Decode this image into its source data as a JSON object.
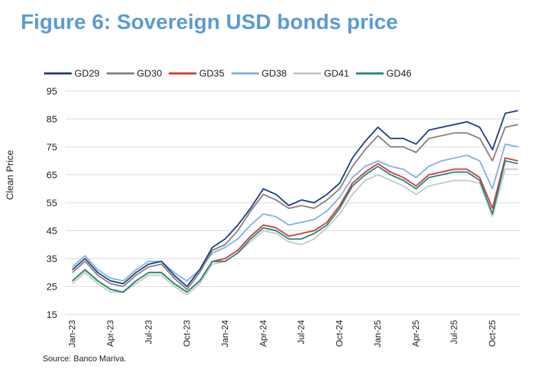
{
  "figure": {
    "title": "Figure 6: Sovereign USD bonds price",
    "source": "Source: Banco Mariva."
  },
  "chart_data": {
    "type": "line",
    "title": "Figure 6: Sovereign USD bonds price",
    "xlabel": "",
    "ylabel": "Clean Price",
    "ylim": [
      15,
      95
    ],
    "yticks": [
      95,
      85,
      75,
      65,
      55,
      45,
      35,
      25,
      15
    ],
    "xticks": [
      "Jan-23",
      "Apr-23",
      "Jul-23",
      "Oct-23",
      "Jan-24",
      "Apr-24",
      "Jul-24",
      "Oct-24",
      "Jan-25",
      "Apr-25",
      "Jul-25",
      "Oct-25"
    ],
    "grid": true,
    "legend_position": "top",
    "x": [
      "Jan-23",
      "Feb-23",
      "Mar-23",
      "Apr-23",
      "May-23",
      "Jun-23",
      "Jul-23",
      "Aug-23",
      "Sep-23",
      "Oct-23",
      "Nov-23",
      "Dec-23",
      "Jan-24",
      "Feb-24",
      "Mar-24",
      "Apr-24",
      "May-24",
      "Jun-24",
      "Jul-24",
      "Aug-24",
      "Sep-24",
      "Oct-24",
      "Nov-24",
      "Dec-24",
      "Jan-25",
      "Feb-25",
      "Mar-25",
      "Apr-25",
      "May-25",
      "Jun-25",
      "Jul-25",
      "Aug-25",
      "Sep-25",
      "Oct-25",
      "Nov-25",
      "Dec-25"
    ],
    "series": [
      {
        "name": "GD29",
        "color": "#1f3d8c",
        "values": [
          31,
          35,
          30,
          27,
          26,
          30,
          33,
          34,
          29,
          25,
          31,
          39,
          42,
          47,
          53,
          60,
          58,
          54,
          56,
          55,
          58,
          62,
          71,
          77,
          82,
          78,
          78,
          76,
          81,
          82,
          83,
          84,
          82,
          74,
          87,
          88
        ]
      },
      {
        "name": "GD30",
        "color": "#8b8178",
        "values": [
          30,
          34,
          29,
          26,
          25,
          29,
          32,
          33,
          28,
          24,
          30,
          38,
          40,
          45,
          52,
          58,
          56,
          53,
          54,
          53,
          56,
          60,
          68,
          74,
          79,
          75,
          75,
          73,
          78,
          79,
          80,
          80,
          78,
          70,
          82,
          83
        ]
      },
      {
        "name": "GD35",
        "color": "#d63a3a",
        "values": [
          27,
          31,
          27,
          24,
          23,
          27,
          30,
          30,
          26,
          23,
          27,
          34,
          35,
          38,
          43,
          47,
          46,
          43,
          44,
          45,
          48,
          54,
          62,
          66,
          69,
          66,
          64,
          61,
          65,
          66,
          67,
          67,
          64,
          53,
          71,
          70
        ]
      },
      {
        "name": "GD38",
        "color": "#7fb2e6",
        "values": [
          32,
          36,
          31,
          28,
          27,
          31,
          34,
          34,
          30,
          27,
          31,
          37,
          39,
          42,
          47,
          51,
          50,
          47,
          48,
          49,
          52,
          57,
          64,
          68,
          70,
          68,
          67,
          64,
          68,
          70,
          71,
          72,
          70,
          60,
          76,
          75
        ]
      },
      {
        "name": "GD41",
        "color": "#c8c8c8",
        "values": [
          26,
          30,
          26,
          23,
          23,
          26,
          29,
          29,
          25,
          22,
          26,
          33,
          34,
          37,
          41,
          45,
          44,
          41,
          40,
          42,
          46,
          51,
          58,
          63,
          65,
          63,
          61,
          58,
          61,
          62,
          63,
          63,
          62,
          50,
          67,
          67
        ]
      },
      {
        "name": "GD46",
        "color": "#1f8a80",
        "values": [
          27,
          31,
          27,
          24,
          23,
          27,
          30,
          30,
          26,
          23,
          27,
          34,
          34,
          37,
          42,
          46,
          45,
          42,
          42,
          44,
          47,
          53,
          61,
          65,
          68,
          65,
          63,
          60,
          64,
          65,
          66,
          66,
          63,
          51,
          70,
          69
        ]
      }
    ]
  }
}
